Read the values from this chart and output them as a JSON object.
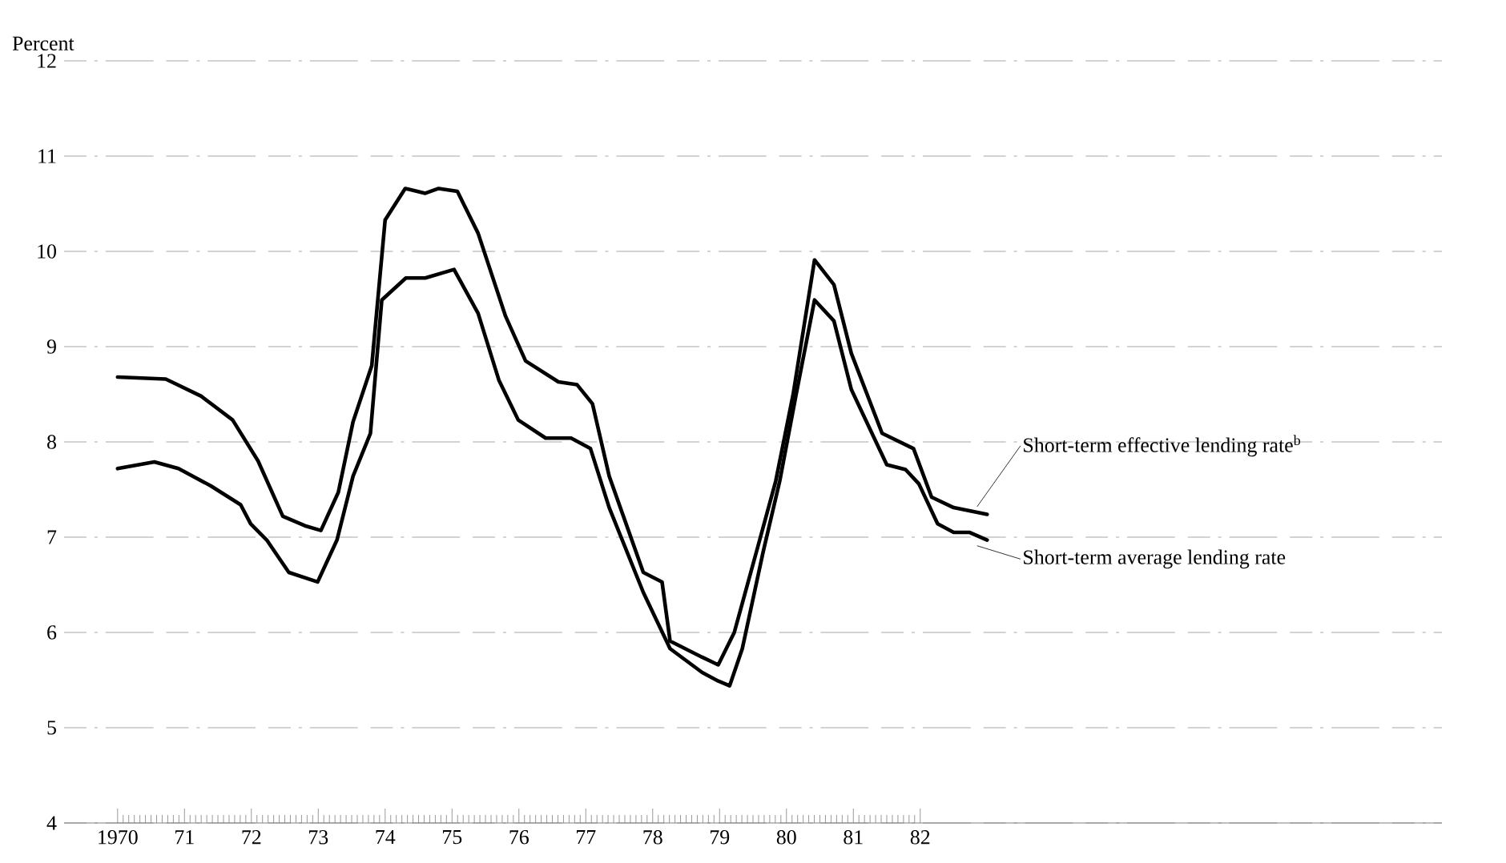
{
  "chart_data": {
    "type": "line",
    "ylabel": "Percent",
    "xlim": [
      1969.2,
      1989.8
    ],
    "ylim": [
      4,
      12
    ],
    "xticks": [
      {
        "value": 1970,
        "label": "1970"
      },
      {
        "value": 1971,
        "label": "71"
      },
      {
        "value": 1972,
        "label": "72"
      },
      {
        "value": 1973,
        "label": "73"
      },
      {
        "value": 1974,
        "label": "74"
      },
      {
        "value": 1975,
        "label": "75"
      },
      {
        "value": 1976,
        "label": "76"
      },
      {
        "value": 1977,
        "label": "77"
      },
      {
        "value": 1978,
        "label": "78"
      },
      {
        "value": 1979,
        "label": "79"
      },
      {
        "value": 1980,
        "label": "80"
      },
      {
        "value": 1981,
        "label": "81"
      },
      {
        "value": 1982,
        "label": "82"
      }
    ],
    "yticks": [
      4,
      5,
      6,
      7,
      8,
      9,
      10,
      11,
      12
    ],
    "grid": "y",
    "legend": "right",
    "marker": "none",
    "line_style": "solid",
    "series": [
      {
        "name": "Short-term effective lending rate$^{b}$",
        "color": "#000000",
        "x": [
          1970.0,
          1970.72,
          1971.25,
          1971.72,
          1972.1,
          1972.47,
          1972.8,
          1973.04,
          1973.3,
          1973.52,
          1973.8,
          1974.0,
          1974.3,
          1974.6,
          1974.8,
          1975.08,
          1975.39,
          1975.8,
          1976.1,
          1976.59,
          1976.87,
          1977.1,
          1977.35,
          1977.86,
          1978.14,
          1978.26,
          1978.74,
          1978.98,
          1979.22,
          1979.58,
          1979.84,
          1980.1,
          1980.42,
          1980.71,
          1980.97,
          1981.43,
          1981.9,
          1982.17,
          1982.5,
          1983.0
        ],
        "values": [
          8.68,
          8.66,
          8.48,
          8.23,
          7.8,
          7.22,
          7.12,
          7.07,
          7.47,
          8.21,
          8.8,
          10.33,
          10.66,
          10.61,
          10.66,
          10.63,
          10.19,
          9.32,
          8.85,
          8.63,
          8.6,
          8.4,
          7.64,
          6.63,
          6.53,
          5.91,
          5.74,
          5.66,
          6.0,
          6.92,
          7.59,
          8.5,
          9.91,
          9.65,
          8.93,
          8.09,
          7.93,
          7.42,
          7.31,
          7.24
        ]
      },
      {
        "name": "Short-term average lending rate",
        "color": "#000000",
        "x": [
          1970.0,
          1970.55,
          1970.91,
          1971.39,
          1971.84,
          1971.99,
          1972.23,
          1972.56,
          1972.99,
          1973.28,
          1973.52,
          1973.78,
          1973.95,
          1974.31,
          1974.6,
          1975.03,
          1975.39,
          1975.7,
          1975.99,
          1976.4,
          1976.78,
          1977.07,
          1977.35,
          1977.86,
          1978.26,
          1978.74,
          1978.98,
          1979.15,
          1979.34,
          1979.65,
          1979.9,
          1980.14,
          1980.42,
          1980.71,
          1980.97,
          1981.5,
          1981.78,
          1981.98,
          1982.26,
          1982.5,
          1982.74,
          1983.0
        ],
        "values": [
          7.72,
          7.79,
          7.72,
          7.54,
          7.34,
          7.14,
          6.97,
          6.63,
          6.53,
          6.97,
          7.64,
          8.09,
          9.49,
          9.72,
          9.72,
          9.81,
          9.35,
          8.65,
          8.23,
          8.04,
          8.04,
          7.93,
          7.31,
          6.42,
          5.83,
          5.58,
          5.49,
          5.44,
          5.83,
          6.84,
          7.59,
          8.48,
          9.49,
          9.27,
          8.55,
          7.76,
          7.71,
          7.56,
          7.14,
          7.05,
          7.05,
          6.97
        ]
      }
    ]
  }
}
